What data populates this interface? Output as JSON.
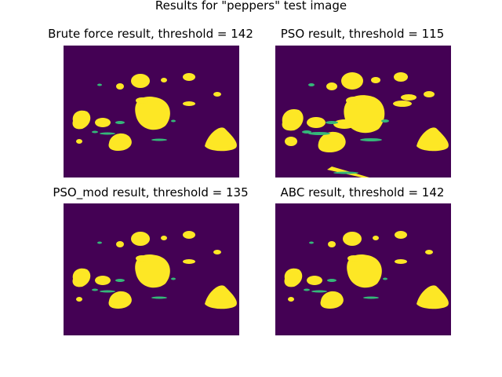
{
  "page": {
    "suptitle": "Results for \"peppers\" test image"
  },
  "chart_data": [
    {
      "type": "heatmap",
      "title": "Brute force result, threshold = 142",
      "method": "Brute force",
      "threshold": 142,
      "colormap": "viridis",
      "values_shown": "binary (0 = dark purple, 1 = yellow)"
    },
    {
      "type": "heatmap",
      "title": "PSO result, threshold = 115",
      "method": "PSO",
      "threshold": 115,
      "colormap": "viridis",
      "values_shown": "binary (0 = dark purple, 1 = yellow)"
    },
    {
      "type": "heatmap",
      "title": "PSO_mod result, threshold = 135",
      "method": "PSO_mod",
      "threshold": 135,
      "colormap": "viridis",
      "values_shown": "binary (0 = dark purple, 1 = yellow)"
    },
    {
      "type": "heatmap",
      "title": "ABC result, threshold = 142",
      "method": "ABC",
      "threshold": 142,
      "colormap": "viridis",
      "values_shown": "binary (0 = dark purple, 1 = yellow)"
    }
  ],
  "colors": {
    "background_class": "#440154",
    "foreground_class": "#fde725",
    "edge_class": "#35b779"
  }
}
